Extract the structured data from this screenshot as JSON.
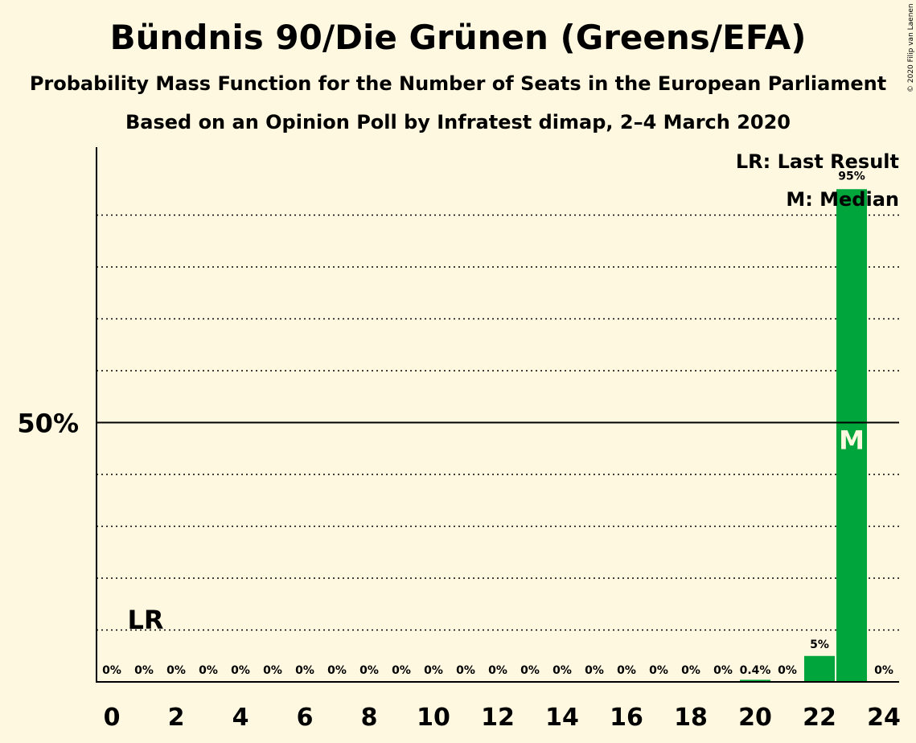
{
  "title": "Bündnis 90/Die Grünen (Greens/EFA)",
  "subtitle": "Probability Mass Function for the Number of Seats in the European Parliament",
  "subtitle2": "Based on an Opinion Poll by Infratest dimap, 2–4 March 2020",
  "copyright": "© 2020 Filip van Laenen",
  "colors": {
    "bar": "#00A63B",
    "background": "#FFF8E1",
    "axis": "#000000"
  },
  "chart_data": {
    "type": "bar",
    "x": [
      0,
      1,
      2,
      3,
      4,
      5,
      6,
      7,
      8,
      9,
      10,
      11,
      12,
      13,
      14,
      15,
      16,
      17,
      18,
      19,
      20,
      21,
      22,
      23,
      24
    ],
    "values": [
      0,
      0,
      0,
      0,
      0,
      0,
      0,
      0,
      0,
      0,
      0,
      0,
      0,
      0,
      0,
      0,
      0,
      0,
      0,
      0,
      0.4,
      0,
      5,
      95,
      0
    ],
    "labels": [
      "0%",
      "0%",
      "0%",
      "0%",
      "0%",
      "0%",
      "0%",
      "0%",
      "0%",
      "0%",
      "0%",
      "0%",
      "0%",
      "0%",
      "0%",
      "0%",
      "0%",
      "0%",
      "0%",
      "0%",
      "0.4%",
      "0%",
      "5%",
      "95%",
      "0%"
    ],
    "xticks": [
      "0",
      "2",
      "4",
      "6",
      "8",
      "10",
      "12",
      "14",
      "16",
      "18",
      "20",
      "22",
      "24"
    ],
    "ytick_label": "50%",
    "ylim": [
      0,
      100
    ],
    "grid": "dotted every 10%",
    "last_result": 1,
    "last_result_label": "LR",
    "median": 23,
    "median_label": "M",
    "legend": [
      "LR: Last Result",
      "M: Median"
    ],
    "legend_position": "top-right"
  }
}
